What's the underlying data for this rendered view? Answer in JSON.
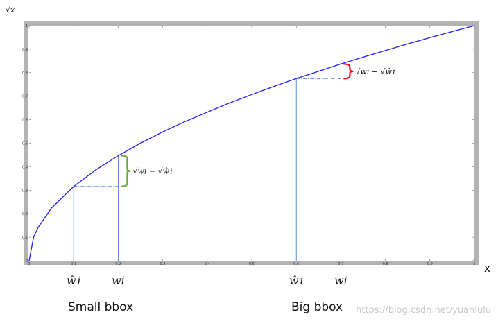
{
  "chart_data": {
    "type": "line",
    "ylabel": "√x",
    "xlabel": "x",
    "xlim": [
      0,
      1
    ],
    "ylim": [
      0,
      1
    ],
    "x_ticks": [
      "0",
      "0.1",
      "0.2",
      "0.3",
      "0.4",
      "0.5",
      "0.6",
      "0.7",
      "0.8",
      "0.9",
      "1"
    ],
    "y_ticks": [
      "0",
      "0.1",
      "0.2",
      "0.3",
      "0.4",
      "0.5",
      "0.6",
      "0.7",
      "0.8",
      "0.9",
      "1"
    ],
    "series": [
      {
        "x": [
          0,
          0.01,
          0.02,
          0.05,
          0.1,
          0.15,
          0.2,
          0.25,
          0.3,
          0.35,
          0.4,
          0.45,
          0.5,
          0.55,
          0.6,
          0.65,
          0.7,
          0.75,
          0.8,
          0.85,
          0.9,
          0.95,
          1.0
        ],
        "y": [
          0,
          0.1,
          0.141,
          0.224,
          0.316,
          0.387,
          0.447,
          0.5,
          0.548,
          0.592,
          0.632,
          0.671,
          0.707,
          0.742,
          0.775,
          0.806,
          0.837,
          0.866,
          0.894,
          0.922,
          0.949,
          0.975,
          1.0
        ]
      }
    ],
    "annotations": [
      {
        "group": "Small bbox",
        "w_hat": 0.1,
        "w": 0.2,
        "w_hat_label": "ŵi",
        "w_label": "wi",
        "expression": "√wi − √ŵi",
        "brace_color": "#6aaa3a"
      },
      {
        "group": "Big bbox",
        "w_hat": 0.6,
        "w": 0.7,
        "w_hat_label": "ŵi",
        "w_label": "wi",
        "expression": "√wi − √ŵi",
        "brace_color": "#ee1111"
      }
    ],
    "grid": false,
    "colors": {
      "curve": "#1f1fff",
      "guides": "#3a6fd0",
      "frame": "#b0b0b0"
    }
  },
  "captions": {
    "small": "Small bbox",
    "big": "Big bbox"
  },
  "watermark": "https://blog.csdn.net/yuanlulu"
}
